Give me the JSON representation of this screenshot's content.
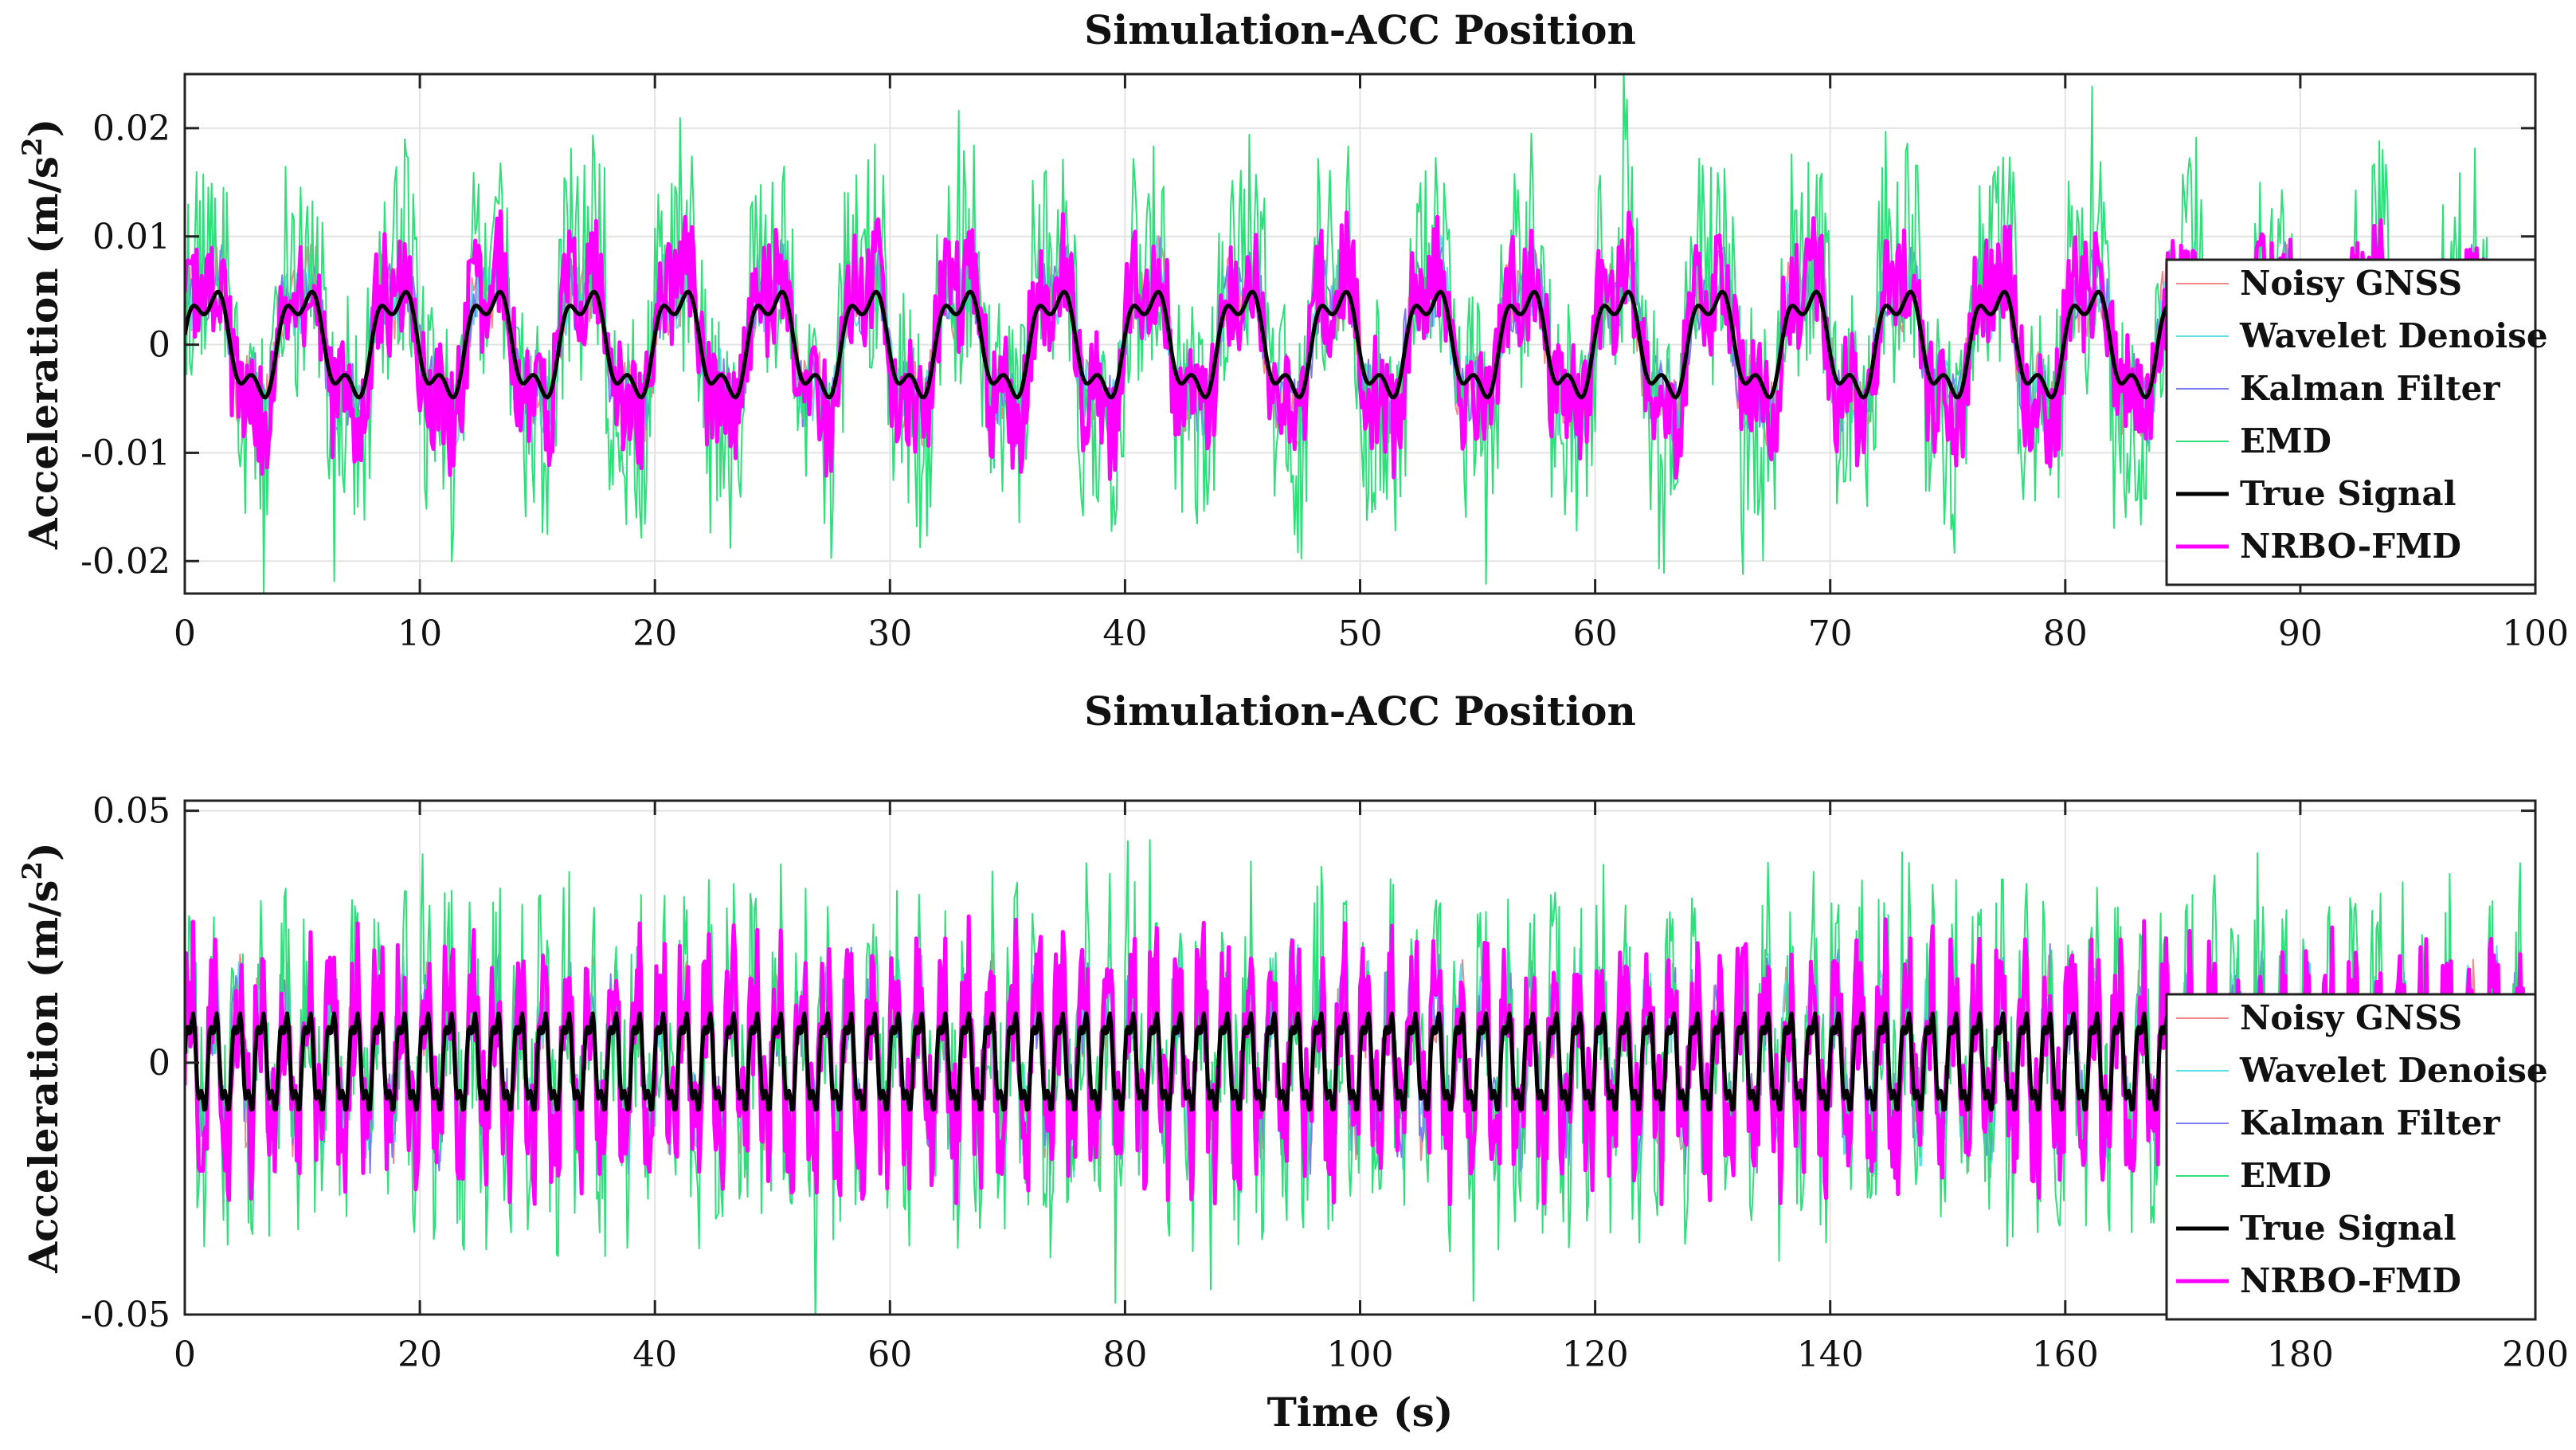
{
  "chart_data": [
    {
      "type": "line",
      "title": "Simulation-ACC Position",
      "xlabel": "",
      "ylabel": "Acceleration (m/s",
      "ylabel_sup": "2",
      "ylabel_end": ")",
      "xlim": [
        0,
        100
      ],
      "ylim": [
        -0.023,
        0.025
      ],
      "xticks": [
        0,
        10,
        20,
        30,
        40,
        50,
        60,
        70,
        80,
        90,
        100
      ],
      "xtick_labels": [
        "0",
        "10",
        "20",
        "30",
        "40",
        "50",
        "60",
        "70",
        "80",
        "90",
        "100"
      ],
      "yticks": [
        -0.02,
        -0.01,
        0,
        0.01,
        0.02
      ],
      "ytick_labels": [
        "-0.02",
        "-0.01",
        "0",
        "0.01",
        "0.02"
      ],
      "grid": true,
      "legend_position": "right",
      "signal": {
        "period_s": 4.0,
        "true_amplitude": 0.006,
        "emd_amplitude": 0.02,
        "fmd_amplitude": 0.012
      },
      "series": [
        {
          "name": "Noisy GNSS",
          "color": "#f08a8a",
          "width": 2
        },
        {
          "name": "Wavelet Denoise",
          "color": "#5ee0e8",
          "width": 2
        },
        {
          "name": "Kalman Filter",
          "color": "#7b7cf0",
          "width": 2
        },
        {
          "name": "EMD",
          "color": "#2ee07a",
          "width": 2
        },
        {
          "name": "True Signal",
          "color": "#000000",
          "width": 5
        },
        {
          "name": "NRBO-FMD",
          "color": "#ff00ff",
          "width": 5
        }
      ]
    },
    {
      "type": "line",
      "title": "Simulation-ACC Position",
      "xlabel": "Time (s)",
      "ylabel": "Acceleration (m/s",
      "ylabel_sup": "2",
      "ylabel_end": ")",
      "xlim": [
        0,
        200
      ],
      "ylim": [
        -0.05,
        0.052
      ],
      "xticks": [
        0,
        20,
        40,
        60,
        80,
        100,
        120,
        140,
        160,
        180,
        200
      ],
      "xtick_labels": [
        "0",
        "20",
        "40",
        "60",
        "80",
        "100",
        "120",
        "140",
        "160",
        "180",
        "200"
      ],
      "yticks": [
        -0.05,
        0,
        0.05
      ],
      "ytick_labels": [
        "-0.05",
        "0",
        "0.05"
      ],
      "grid": true,
      "legend_position": "right",
      "signal": {
        "period_s": 2.0,
        "true_amplitude": 0.012,
        "emd_amplitude": 0.04,
        "fmd_amplitude": 0.028
      },
      "series": [
        {
          "name": "Noisy GNSS",
          "color": "#f08a8a",
          "width": 2
        },
        {
          "name": "Wavelet Denoise",
          "color": "#5ee0e8",
          "width": 2
        },
        {
          "name": "Kalman Filter",
          "color": "#7b7cf0",
          "width": 2
        },
        {
          "name": "EMD",
          "color": "#2ee07a",
          "width": 2
        },
        {
          "name": "True Signal",
          "color": "#000000",
          "width": 5
        },
        {
          "name": "NRBO-FMD",
          "color": "#ff00ff",
          "width": 5
        }
      ]
    }
  ]
}
